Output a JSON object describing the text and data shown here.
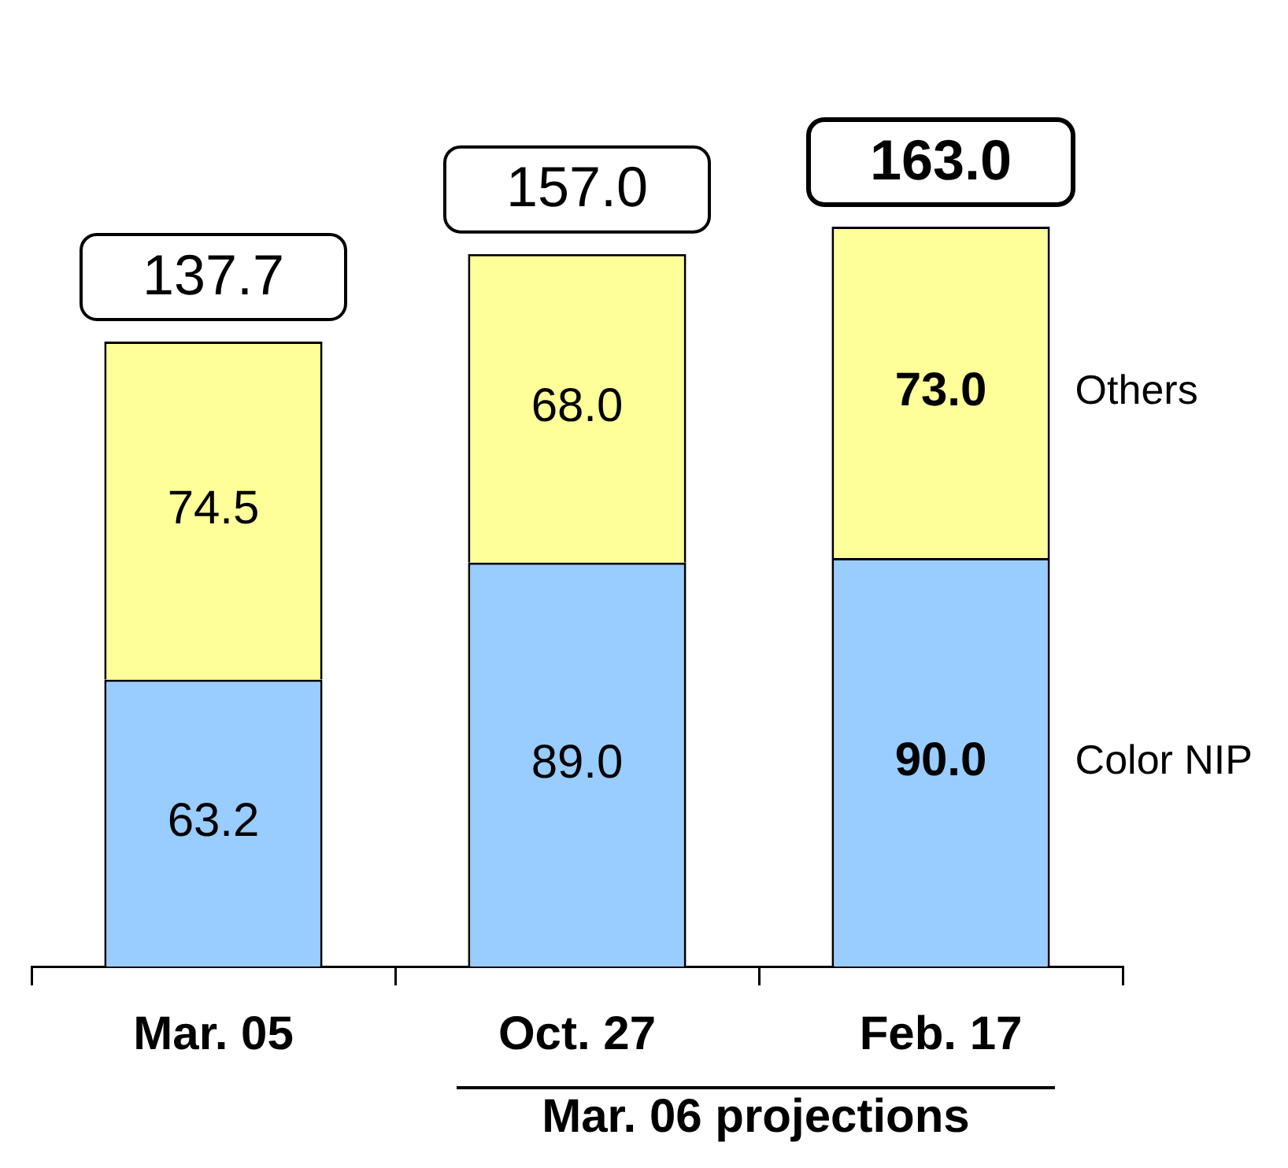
{
  "chart_data": {
    "type": "bar",
    "stacked": true,
    "categories": [
      "Mar. 05",
      "Oct. 27",
      "Feb. 17"
    ],
    "series": [
      {
        "name": "Color NIP",
        "color": "#99ccff",
        "values": [
          63.2,
          89.0,
          90.0
        ],
        "value_labels": [
          "63.2",
          "89.0",
          "90.0"
        ]
      },
      {
        "name": "Others",
        "color": "#ffff99",
        "values": [
          74.5,
          68.0,
          73.0
        ],
        "value_labels": [
          "74.5",
          "68.0",
          "73.0"
        ]
      }
    ],
    "totals": [
      "137.7",
      "157.0",
      "163.0"
    ],
    "annotations": [
      "Mar. 06 projections"
    ],
    "grid": false,
    "legend": false,
    "tick_labels": "x"
  }
}
